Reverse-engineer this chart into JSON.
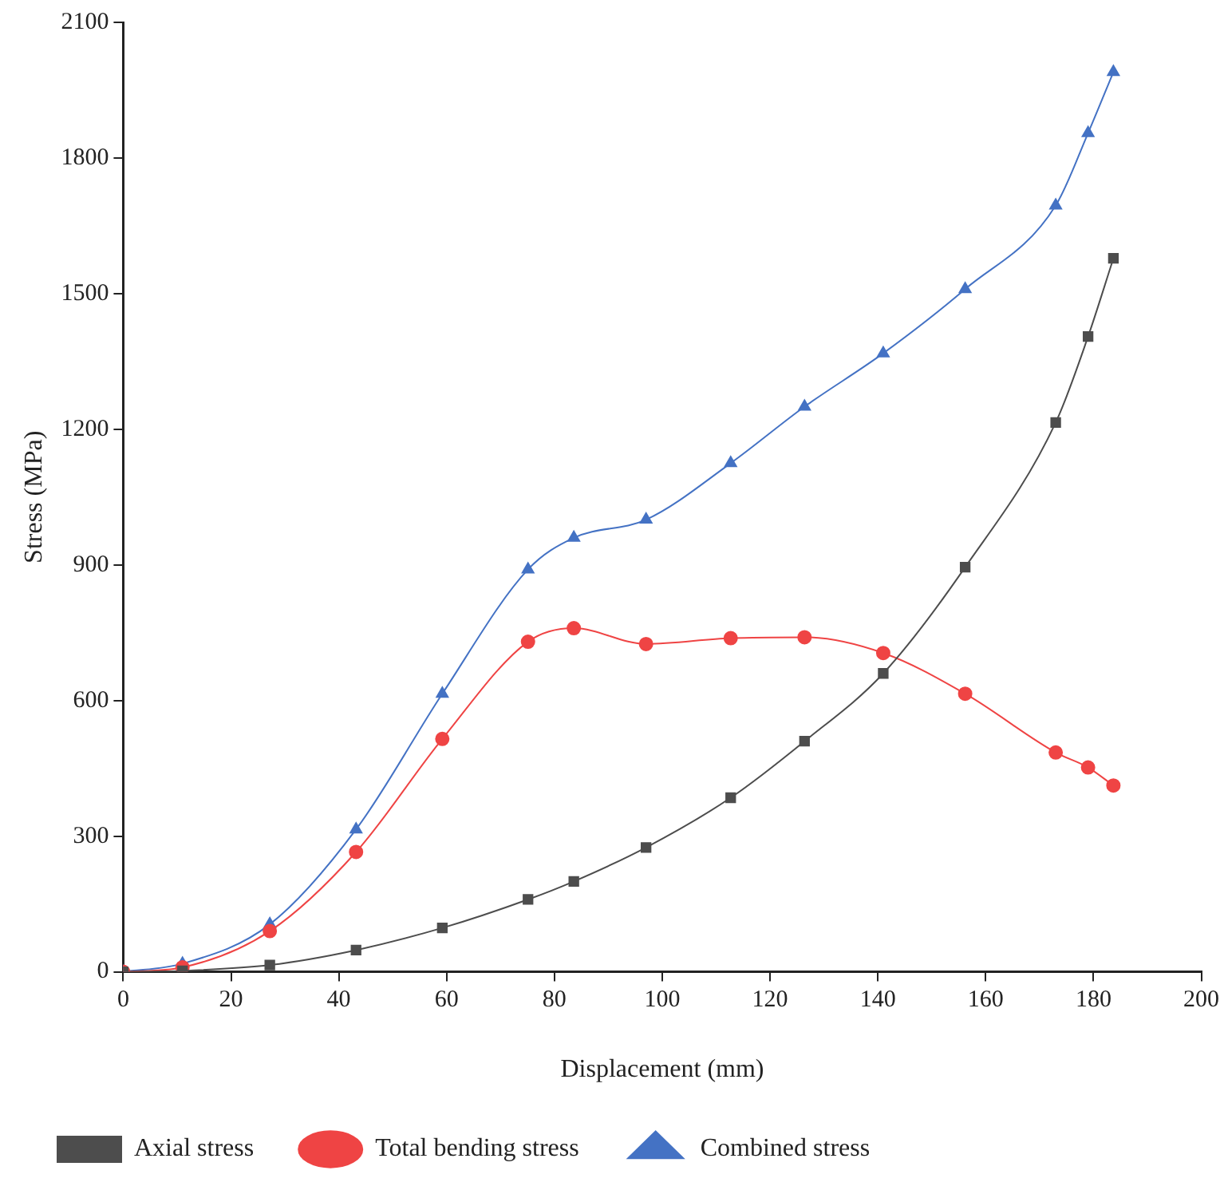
{
  "chart_data": {
    "type": "line",
    "xlabel": "Displacement (mm)",
    "ylabel": "Stress (MPa)",
    "x": [
      0,
      11,
      27.2,
      43.2,
      59.2,
      75.1,
      83.6,
      97,
      112.7,
      126.4,
      141,
      156.2,
      173,
      179,
      183.7
    ],
    "series": [
      {
        "name": "Axial stress",
        "color": "#4d4d4d",
        "marker": "square",
        "values": [
          0,
          2,
          15,
          48,
          97,
          160,
          200,
          275,
          385,
          510,
          660,
          895,
          1215,
          1405,
          1578
        ]
      },
      {
        "name": "Total bending stress",
        "color": "#ef4444",
        "marker": "circle",
        "values": [
          0,
          10,
          90,
          265,
          515,
          730,
          760,
          725,
          738,
          740,
          705,
          615,
          485,
          452,
          412
        ]
      },
      {
        "name": "Combined stress",
        "color": "#4472c4",
        "marker": "triangle",
        "values": [
          0,
          18,
          105,
          315,
          615,
          890,
          960,
          1000,
          1125,
          1250,
          1368,
          1510,
          1695,
          1855,
          1990
        ]
      }
    ],
    "xlim": [
      0,
      200
    ],
    "xticks": [
      0,
      20,
      40,
      60,
      80,
      100,
      120,
      140,
      160,
      180,
      200
    ],
    "ylim": [
      0,
      2100
    ],
    "yticks": [
      0,
      300,
      600,
      900,
      1200,
      1500,
      1800,
      2100
    ],
    "grid": false,
    "legend": "bottom left"
  }
}
